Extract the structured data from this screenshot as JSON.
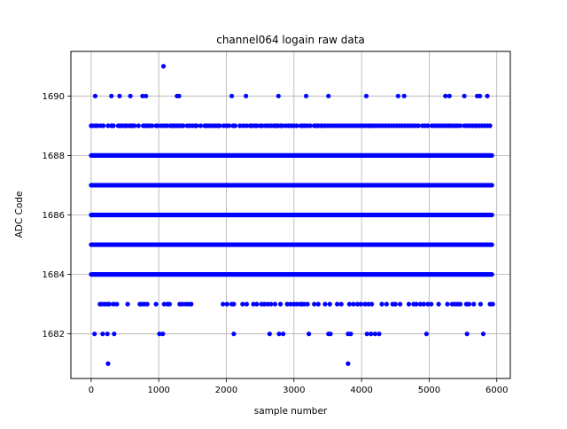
{
  "chart_data": {
    "type": "scatter",
    "title": "channel064 logain raw data",
    "xlabel": "sample number",
    "ylabel": "ADC Code",
    "xlim": [
      -300,
      6200
    ],
    "ylim": [
      1680.5,
      1691.5
    ],
    "xticks": [
      0,
      1000,
      2000,
      3000,
      4000,
      5000,
      6000
    ],
    "xtick_labels": [
      "0",
      "1000",
      "2000",
      "3000",
      "4000",
      "5000",
      "6000"
    ],
    "yticks": [
      1682,
      1684,
      1686,
      1688,
      1690
    ],
    "ytick_labels": [
      "1682",
      "1684",
      "1686",
      "1688",
      "1690"
    ],
    "grid": true,
    "marker_color": "#0000ff",
    "n_samples": 5930,
    "series": [
      {
        "dense_levels": [
          {
            "y": 1684,
            "x_range": [
              0,
              5930
            ]
          },
          {
            "y": 1685,
            "x_range": [
              0,
              5930
            ]
          },
          {
            "y": 1686,
            "x_range": [
              0,
              5930
            ]
          },
          {
            "y": 1687,
            "x_range": [
              0,
              5930
            ]
          },
          {
            "y": 1688,
            "x_range": [
              0,
              5930
            ]
          }
        ],
        "points": {
          "1689": [
            0,
            20,
            60,
            90,
            140,
            180,
            250,
            300,
            330,
            400,
            430,
            460,
            500,
            520,
            560,
            590,
            610,
            640,
            700,
            770,
            800,
            830,
            860,
            900,
            960,
            990,
            1040,
            1080,
            1120,
            1170,
            1200,
            1230,
            1260,
            1290,
            1330,
            1360,
            1420,
            1460,
            1500,
            1540,
            1560,
            1620,
            1680,
            1700,
            1730,
            1760,
            1800,
            1840,
            1870,
            1900,
            1960,
            2000,
            2040,
            2100,
            2130,
            2200,
            2250,
            2300,
            2350,
            2380,
            2420,
            2450,
            2500,
            2530,
            2580,
            2620,
            2660,
            2700,
            2730,
            2760,
            2800,
            2830,
            2880,
            2920,
            2960,
            3000,
            3040,
            3100,
            3130,
            3160,
            3200,
            3240,
            3300,
            3330,
            3360,
            3400,
            3420,
            3460,
            3500,
            3540,
            3580,
            3620,
            3660,
            3700,
            3740,
            3780,
            3820,
            3860,
            3900,
            3940,
            3980,
            4020,
            4060,
            4100,
            4130,
            4160,
            4200,
            4240,
            4280,
            4320,
            4360,
            4400,
            4440,
            4480,
            4520,
            4560,
            4600,
            4640,
            4680,
            4720,
            4760,
            4800,
            4840,
            4900,
            4940,
            4980,
            5040,
            5080,
            5120,
            5160,
            5200,
            5240,
            5280,
            5300,
            5340,
            5380,
            5420,
            5460,
            5520,
            5560,
            5600,
            5640,
            5680,
            5700,
            5740,
            5780,
            5820,
            5860,
            5900
          ],
          "1690": [
            60,
            300,
            420,
            580,
            760,
            810,
            1270,
            1300,
            2080,
            2290,
            2770,
            3180,
            3510,
            4070,
            4540,
            4630,
            5240,
            5300,
            5520,
            5710,
            5750,
            5860
          ],
          "1691": [
            1070
          ],
          "1683": [
            130,
            160,
            200,
            240,
            270,
            330,
            380,
            540,
            720,
            750,
            790,
            830,
            960,
            1080,
            1130,
            1160,
            1310,
            1350,
            1400,
            1440,
            1480,
            1950,
            2010,
            2080,
            2110,
            2240,
            2300,
            2400,
            2450,
            2520,
            2560,
            2610,
            2660,
            2720,
            2800,
            2900,
            2950,
            3000,
            3040,
            3090,
            3120,
            3150,
            3200,
            3300,
            3360,
            3460,
            3530,
            3640,
            3700,
            3820,
            3880,
            3940,
            3990,
            4050,
            4100,
            4150,
            4300,
            4370,
            4460,
            4500,
            4570,
            4700,
            4770,
            4810,
            4870,
            4920,
            4980,
            5030,
            5140,
            5270,
            5340,
            5380,
            5420,
            5460,
            5550,
            5590,
            5660,
            5760,
            5900,
            5940
          ],
          "1682": [
            50,
            170,
            240,
            340,
            1010,
            1060,
            2110,
            2640,
            2780,
            2840,
            3220,
            3510,
            3540,
            3800,
            3840,
            4080,
            4140,
            4200,
            4260,
            4960,
            5560,
            5800
          ],
          "1681": [
            250,
            3800
          ]
        }
      }
    ]
  }
}
